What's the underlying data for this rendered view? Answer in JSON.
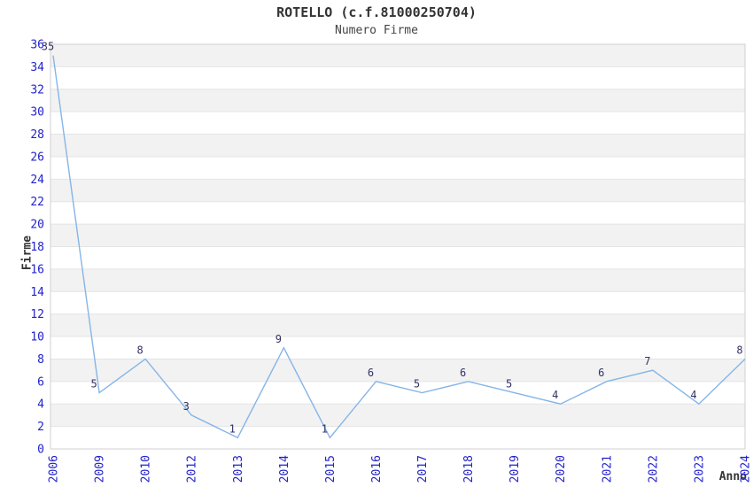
{
  "header": {
    "title": "ROTELLO (c.f.81000250704)",
    "subtitle": "Numero Firme"
  },
  "chart_data": {
    "type": "line",
    "title": "ROTELLO (c.f.81000250704)",
    "subtitle": "Numero Firme",
    "xlabel": "Anno",
    "ylabel": "Firme",
    "categories": [
      "2006",
      "2009",
      "2010",
      "2012",
      "2013",
      "2014",
      "2015",
      "2016",
      "2017",
      "2018",
      "2019",
      "2020",
      "2021",
      "2022",
      "2023",
      "2024"
    ],
    "values": [
      35,
      5,
      8,
      3,
      1,
      9,
      1,
      6,
      5,
      6,
      5,
      4,
      6,
      7,
      4,
      8
    ],
    "point_labels": [
      "35",
      "5",
      "8",
      "3",
      "1",
      "9",
      "1",
      "6",
      "5",
      "6",
      "5",
      "4",
      "6",
      "7",
      "4",
      "8"
    ],
    "ylim": [
      0,
      36
    ],
    "y_ticks": [
      0,
      2,
      4,
      6,
      8,
      10,
      12,
      14,
      16,
      18,
      20,
      22,
      24,
      26,
      28,
      30,
      32,
      34,
      36
    ],
    "grid": "horizontal",
    "banding": "alternating-horizontal",
    "legend": "none",
    "markers": "none"
  },
  "colors": {
    "background": "#ffffff",
    "band_fill": "#f2f2f2",
    "gridline": "#e4e4e4",
    "plot_border": "#d0d0d0",
    "line": "#85b5e7",
    "tick_label": "#2222cc",
    "data_label": "#333366",
    "title_text": "#333333"
  }
}
